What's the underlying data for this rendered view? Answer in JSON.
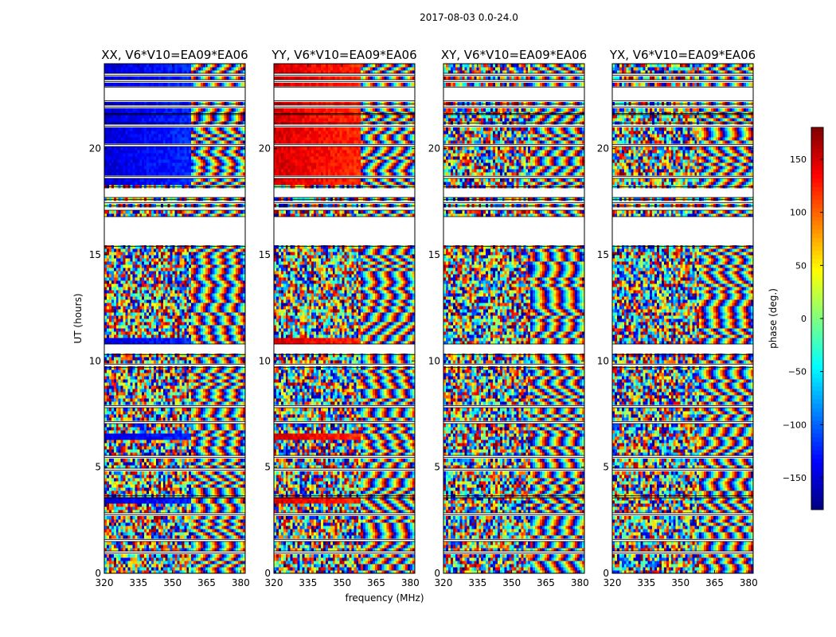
{
  "figure": {
    "suptitle": "2017-08-03 0.0-24.0",
    "xlabel": "frequency (MHz)",
    "ylabel": "UT (hours)"
  },
  "colors": {
    "background": "#ffffff",
    "axes": "#000000",
    "gap": "#ffffff",
    "colormap": [
      "#00007f",
      "#0000ff",
      "#007fff",
      "#00ffff",
      "#7fff7f",
      "#ffff00",
      "#ff7f00",
      "#ff0000",
      "#7f0000"
    ]
  },
  "chart_data": {
    "type": "heatmap",
    "subtype": "dynamic-spectrum-phase",
    "x": {
      "label": "frequency (MHz)",
      "range": [
        320,
        382
      ],
      "ticks": [
        320,
        335,
        350,
        365,
        380
      ]
    },
    "y": {
      "label": "UT (hours)",
      "range": [
        0,
        24
      ],
      "ticks": [
        0,
        5,
        10,
        15,
        20
      ]
    },
    "colorbar": {
      "label": "phase (deg.)",
      "range": [
        -180,
        180
      ],
      "ticks": [
        -150,
        -100,
        -50,
        0,
        50,
        100,
        150
      ],
      "colormap": "jet"
    },
    "flagged_ut_ranges": [
      [
        0.95,
        1.05
      ],
      [
        1.5,
        1.6
      ],
      [
        2.75,
        2.85
      ],
      [
        3.55,
        3.65
      ],
      [
        4.85,
        4.95
      ],
      [
        5.45,
        5.55
      ],
      [
        7.05,
        7.15
      ],
      [
        7.8,
        7.9
      ],
      [
        9.7,
        9.85
      ],
      [
        10.3,
        10.8
      ],
      [
        15.4,
        16.8
      ],
      [
        17.1,
        17.3
      ],
      [
        17.45,
        17.6
      ],
      [
        17.7,
        18.2
      ],
      [
        18.6,
        18.7
      ],
      [
        20.1,
        20.2
      ],
      [
        21.05,
        21.2
      ],
      [
        21.6,
        21.65
      ],
      [
        21.95,
        22.1
      ],
      [
        22.25,
        22.9
      ],
      [
        23.15,
        23.25
      ],
      [
        23.45,
        23.55
      ]
    ],
    "panels": [
      {
        "title": "XX, V6*V10=EA09*EA06",
        "low_freq_phase_deg": -150,
        "phase_slope_deg_per_mhz": 55,
        "coherent_ut_ranges": [
          [
            3.25,
            3.55
          ],
          [
            6.35,
            6.55
          ],
          [
            10.8,
            11.05
          ],
          [
            18.25,
            24.0
          ]
        ]
      },
      {
        "title": "YY, V6*V10=EA09*EA06",
        "low_freq_phase_deg": 150,
        "phase_slope_deg_per_mhz": 55,
        "coherent_ut_ranges": [
          [
            3.25,
            3.55
          ],
          [
            6.35,
            6.55
          ],
          [
            10.8,
            11.05
          ],
          [
            18.25,
            24.0
          ]
        ]
      },
      {
        "title": "XY, V6*V10=EA09*EA06",
        "low_freq_phase_deg": null,
        "phase_slope_deg_per_mhz": 55,
        "coherent_ut_ranges": []
      },
      {
        "title": "YX, V6*V10=EA09*EA06",
        "low_freq_phase_deg": null,
        "phase_slope_deg_per_mhz": 55,
        "coherent_ut_ranges": []
      }
    ]
  }
}
